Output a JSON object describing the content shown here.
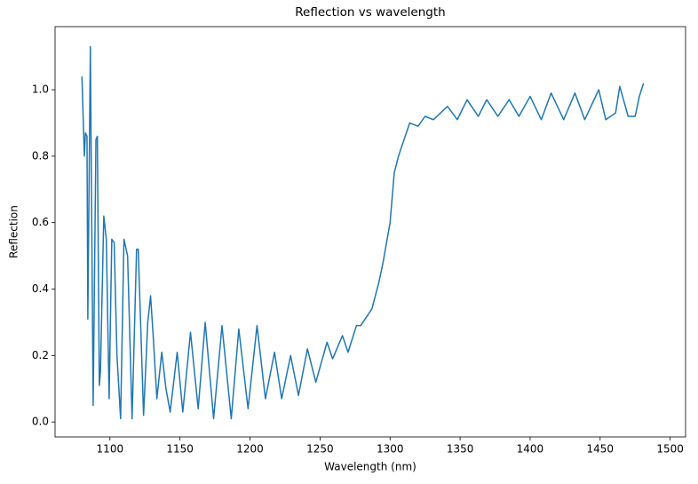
{
  "chart_data": {
    "type": "line",
    "title": "Reflection vs wavelength",
    "x_label": "Wavelength (nm)",
    "y_label": "Reflection",
    "x": [
      1080,
      1081.7,
      1082.5,
      1083.6,
      1084.2,
      1086,
      1088,
      1090,
      1091,
      1092.4,
      1093.2,
      1095.6,
      1097.4,
      1099.4,
      1101.3,
      1103,
      1105,
      1107.6,
      1110,
      1112.6,
      1115.8,
      1119,
      1120.2,
      1124,
      1127,
      1129,
      1131,
      1133.5,
      1137,
      1140,
      1143,
      1148,
      1152,
      1157.5,
      1163,
      1168,
      1174,
      1180,
      1186.6,
      1192,
      1198.6,
      1205,
      1211,
      1217.5,
      1222.6,
      1229,
      1234.6,
      1241,
      1247,
      1255,
      1259,
      1266,
      1270,
      1276,
      1279,
      1287,
      1292,
      1295,
      1300,
      1303,
      1306,
      1310,
      1314,
      1320,
      1325,
      1331,
      1341,
      1348,
      1355,
      1363,
      1369,
      1377,
      1385,
      1392,
      1400,
      1408,
      1415,
      1424,
      1432,
      1439,
      1449,
      1454,
      1461,
      1464,
      1470,
      1475,
      1478,
      1481
    ],
    "series": [
      {
        "name": "Reflection",
        "color": "#1f77b4",
        "values": [
          1.04,
          0.8,
          0.87,
          0.86,
          0.31,
          1.13,
          0.05,
          0.85,
          0.86,
          0.11,
          0.15,
          0.62,
          0.55,
          0.07,
          0.55,
          0.54,
          0.2,
          0.01,
          0.55,
          0.5,
          0.01,
          0.52,
          0.52,
          0.02,
          0.3,
          0.38,
          0.25,
          0.07,
          0.21,
          0.1,
          0.03,
          0.21,
          0.03,
          0.27,
          0.04,
          0.3,
          0.01,
          0.29,
          0.01,
          0.28,
          0.04,
          0.29,
          0.07,
          0.21,
          0.07,
          0.2,
          0.08,
          0.22,
          0.12,
          0.24,
          0.19,
          0.26,
          0.21,
          0.29,
          0.29,
          0.34,
          0.42,
          0.48,
          0.6,
          0.75,
          0.8,
          0.85,
          0.9,
          0.89,
          0.92,
          0.91,
          0.95,
          0.91,
          0.97,
          0.92,
          0.97,
          0.92,
          0.97,
          0.92,
          0.98,
          0.91,
          0.99,
          0.91,
          0.99,
          0.91,
          1.0,
          0.91,
          0.93,
          1.01,
          0.92,
          0.92,
          0.98,
          1.02
        ]
      }
    ],
    "xlim": [
      1060.8,
      1511
    ],
    "ylim": [
      -0.045,
      1.19
    ],
    "xticks": [
      1100,
      1150,
      1200,
      1250,
      1300,
      1350,
      1400,
      1450,
      1500
    ],
    "yticks": [
      {
        "value": 0,
        "label": "0.0"
      },
      0.2,
      0.4,
      0.6,
      0.8,
      {
        "value": 1,
        "label": "1.0"
      }
    ],
    "grid": false
  }
}
